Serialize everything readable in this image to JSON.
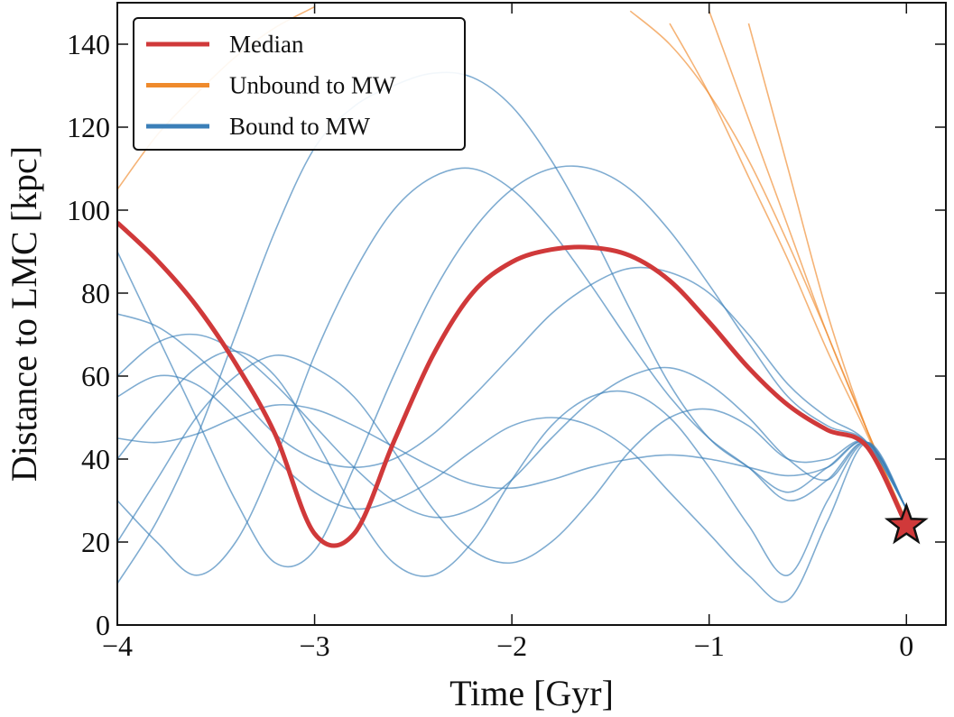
{
  "chart_data": {
    "type": "line",
    "xlabel": "Time [Gyr]",
    "ylabel": "Distance to LMC [kpc]",
    "xlim": [
      -4,
      0.2
    ],
    "ylim": [
      0,
      150
    ],
    "xticks": [
      {
        "value": -4,
        "label": "−4"
      },
      {
        "value": -3,
        "label": "−3"
      },
      {
        "value": -2,
        "label": "−2"
      },
      {
        "value": -1,
        "label": "−1"
      },
      0
    ],
    "yticks": [
      0,
      20,
      40,
      60,
      80,
      100,
      120,
      140
    ],
    "legend": "upper left",
    "x": [
      -4,
      -3.8,
      -3.6,
      -3.4,
      -3.2,
      -3.0,
      -2.8,
      -2.6,
      -2.4,
      -2.2,
      -2.0,
      -1.8,
      -1.6,
      -1.4,
      -1.2,
      -1.0,
      -0.8,
      -0.6,
      -0.4,
      -0.2,
      0
    ],
    "series": [
      {
        "name": "Median",
        "color": "#d0393a",
        "values": [
          97,
          88,
          77,
          63,
          46,
          22,
          22,
          44,
          65,
          80,
          87.5,
          90.5,
          91,
          89,
          83,
          73,
          62,
          53,
          47,
          43,
          24
        ]
      },
      {
        "name": "Unbound to MW",
        "color": "#ef8a2c",
        "curves": [
          [
            null,
            null,
            null,
            null,
            null,
            null,
            null,
            null,
            null,
            null,
            null,
            null,
            null,
            null,
            null,
            null,
            145,
            110,
            75,
            47,
            25
          ],
          [
            null,
            null,
            null,
            null,
            null,
            null,
            null,
            null,
            null,
            null,
            null,
            null,
            null,
            null,
            null,
            148,
            122,
            96,
            70,
            47,
            25
          ],
          [
            null,
            null,
            null,
            null,
            null,
            null,
            null,
            null,
            null,
            null,
            null,
            null,
            null,
            null,
            145,
            128,
            108,
            88,
            66,
            46,
            25
          ],
          [
            null,
            null,
            null,
            null,
            null,
            null,
            null,
            null,
            null,
            null,
            null,
            null,
            null,
            148,
            140,
            128,
            112,
            92,
            70,
            47,
            25
          ],
          [
            105,
            118,
            128,
            137,
            144,
            149,
            null,
            null,
            null,
            null,
            null,
            null,
            null,
            null,
            null,
            null,
            null,
            null,
            null,
            null,
            null
          ]
        ]
      },
      {
        "name": "Bound to MW",
        "color": "#3b7fb8",
        "curves": [
          [
            45,
            44,
            46,
            50,
            53,
            52,
            48,
            43,
            38,
            34,
            33,
            35,
            38,
            40,
            41,
            40,
            38,
            36,
            38,
            44,
            28
          ],
          [
            60,
            68,
            70,
            66,
            58,
            48,
            38,
            30,
            26,
            28,
            35,
            45,
            54,
            60,
            62,
            58,
            50,
            40,
            35,
            44,
            28
          ],
          [
            40,
            52,
            62,
            66,
            60,
            45,
            28,
            15,
            12,
            20,
            35,
            48,
            55,
            56,
            50,
            38,
            24,
            12,
            30,
            44,
            28
          ],
          [
            30,
            20,
            12,
            20,
            40,
            65,
            85,
            100,
            108,
            110,
            105,
            95,
            82,
            68,
            55,
            45,
            38,
            30,
            35,
            44,
            28
          ],
          [
            90,
            70,
            50,
            30,
            15,
            18,
            38,
            60,
            80,
            95,
            105,
            110,
            110,
            105,
            95,
            82,
            68,
            55,
            48,
            44,
            28
          ],
          [
            55,
            60,
            58,
            50,
            40,
            32,
            28,
            30,
            35,
            42,
            48,
            50,
            48,
            42,
            32,
            22,
            12,
            6,
            25,
            44,
            28
          ],
          [
            75,
            72,
            65,
            56,
            46,
            40,
            38,
            40,
            46,
            55,
            65,
            75,
            82,
            86,
            85,
            80,
            70,
            58,
            50,
            44,
            28
          ],
          [
            20,
            35,
            50,
            60,
            65,
            62,
            55,
            42,
            28,
            18,
            15,
            20,
            30,
            42,
            50,
            52,
            48,
            40,
            40,
            44,
            28
          ],
          [
            10,
            25,
            45,
            70,
            95,
            115,
            125,
            130,
            133,
            132,
            125,
            112,
            95,
            76,
            58,
            45,
            38,
            32,
            38,
            44,
            28
          ]
        ]
      }
    ],
    "marker": {
      "x": 0,
      "y": 24,
      "color": "#d0393a"
    }
  }
}
